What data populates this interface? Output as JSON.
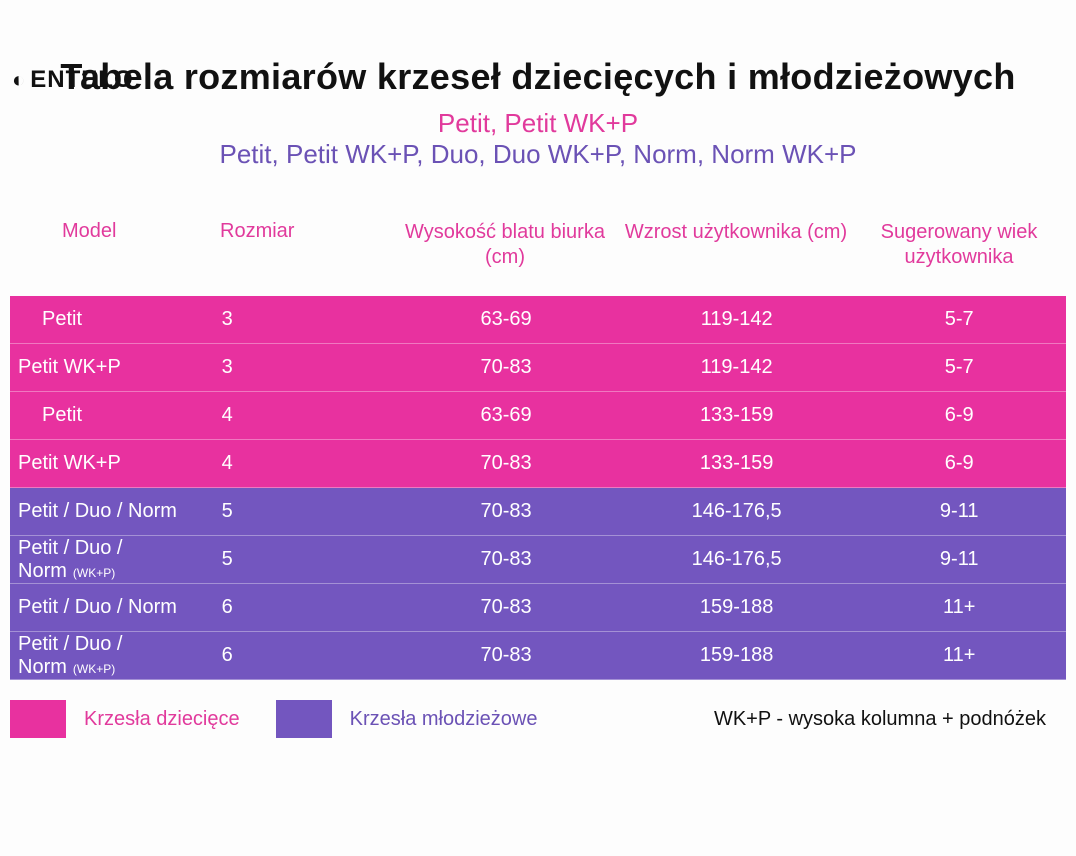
{
  "brand": "ENTELO",
  "colors": {
    "pink": "#e8319f",
    "purple": "#7356bf"
  },
  "title": "Tabela rozmiarów krzeseł dziecięcych i młodzieżowych",
  "subtitle1": "Petit, Petit WK+P",
  "subtitle2": "Petit, Petit WK+P, Duo, Duo WK+P, Norm, Norm WK+P",
  "headers": {
    "model": "Model",
    "size": "Rozmiar",
    "desk": "Wysokość blatu biurka (cm)",
    "height": "Wzrost użytkownika (cm)",
    "age": "Sugerowany wiek użytkownika"
  },
  "rows": [
    {
      "model": "Petit",
      "wk": "",
      "size": "3",
      "desk": "63-69",
      "height": "119-142",
      "age": "5-7",
      "group": "pink",
      "indent": true
    },
    {
      "model": "Petit WK+P",
      "wk": "",
      "size": "3",
      "desk": "70-83",
      "height": "119-142",
      "age": "5-7",
      "group": "pink",
      "indent": false
    },
    {
      "model": "Petit",
      "wk": "",
      "size": "4",
      "desk": "63-69",
      "height": "133-159",
      "age": "6-9",
      "group": "pink",
      "indent": true
    },
    {
      "model": "Petit WK+P",
      "wk": "",
      "size": "4",
      "desk": "70-83",
      "height": "133-159",
      "age": "6-9",
      "group": "pink",
      "indent": false
    },
    {
      "model": "Petit / Duo / Norm",
      "wk": "",
      "size": "5",
      "desk": "70-83",
      "height": "146-176,5",
      "age": "9-11",
      "group": "purple",
      "indent": false
    },
    {
      "model": "Petit / Duo / Norm",
      "wk": "(WK+P)",
      "size": "5",
      "desk": "70-83",
      "height": "146-176,5",
      "age": "9-11",
      "group": "purple",
      "indent": false
    },
    {
      "model": "Petit / Duo / Norm",
      "wk": "",
      "size": "6",
      "desk": "70-83",
      "height": "159-188",
      "age": "11+",
      "group": "purple",
      "indent": false
    },
    {
      "model": "Petit / Duo / Norm",
      "wk": "(WK+P)",
      "size": "6",
      "desk": "70-83",
      "height": "159-188",
      "age": "11+",
      "group": "purple",
      "indent": false
    }
  ],
  "legend": {
    "children": "Krzesła dziecięce",
    "youth": "Krzesła młodzieżowe",
    "note": "WK+P - wysoka kolumna + podnóżek"
  }
}
